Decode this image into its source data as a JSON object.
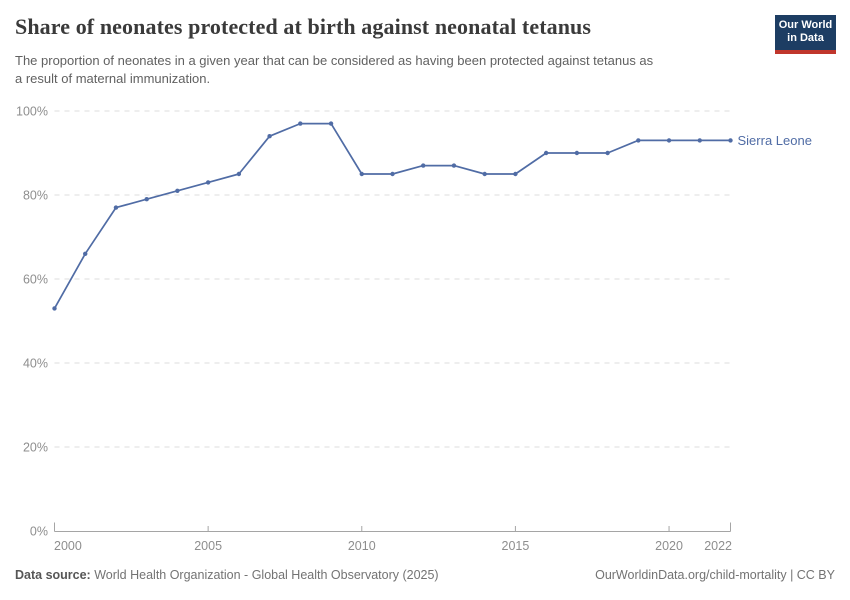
{
  "header": {
    "title": "Share of neonates protected at birth against neonatal tetanus",
    "subtitle_lines": [
      "The proportion of neonates in a given year that can be considered as having been protected against tetanus as",
      "a result of maternal immunization."
    ],
    "logo": {
      "line1": "Our World",
      "line2": "in Data",
      "bg_color": "#1d3d63",
      "accent_color": "#c0362c"
    }
  },
  "chart_data": {
    "type": "line",
    "title": "Share of neonates protected at birth against neonatal tetanus",
    "xlabel": "",
    "ylabel": "",
    "xlim": [
      2000,
      2022
    ],
    "ylim": [
      0,
      100
    ],
    "x_ticks": [
      2000,
      2005,
      2010,
      2015,
      2020,
      2022
    ],
    "y_ticks": [
      0,
      20,
      40,
      60,
      80,
      100
    ],
    "y_tick_suffix": "%",
    "grid": "horizontal-dashed",
    "legend": "end-of-line-label",
    "series": [
      {
        "name": "Sierra Leone",
        "color": "#506CA5",
        "x": [
          2000,
          2001,
          2002,
          2003,
          2004,
          2005,
          2006,
          2007,
          2008,
          2009,
          2010,
          2011,
          2012,
          2013,
          2014,
          2015,
          2016,
          2017,
          2018,
          2019,
          2020,
          2021,
          2022
        ],
        "values": [
          53,
          66,
          77,
          79,
          81,
          83,
          85,
          94,
          97,
          97,
          85,
          85,
          87,
          87,
          85,
          85,
          90,
          90,
          90,
          93,
          93,
          93,
          93
        ]
      }
    ]
  },
  "footer": {
    "data_source_label": "Data source:",
    "data_source_value": "World Health Organization - Global Health Observatory (2025)",
    "credit": "OurWorldinData.org/child-mortality | CC BY"
  },
  "colors": {
    "title": "#3a3a3a",
    "subtitle": "#616161",
    "grid": "#dcdcdc",
    "axis": "#a5a5a5",
    "tick_label": "#8e8e8e",
    "footer_text": "#737373"
  }
}
